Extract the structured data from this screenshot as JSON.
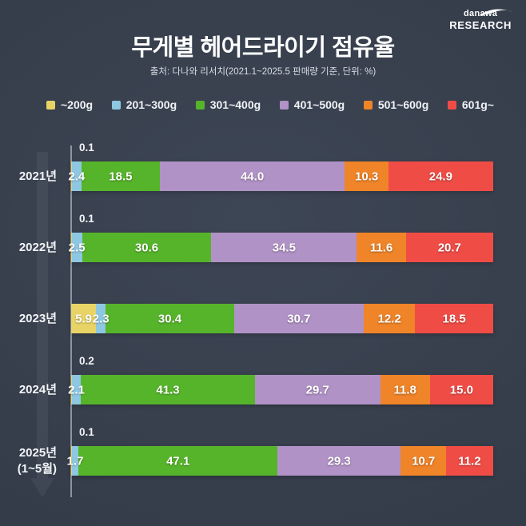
{
  "logo": {
    "brand": "danawa",
    "research": "RESEARCH"
  },
  "header": {
    "title": "무게별 헤어드라이기 점유율",
    "subtitle": "출처: 다나와 리서치(2021.1~2025.5 판매량 기준, 단위: %)"
  },
  "chart_data": {
    "type": "bar",
    "orientation": "horizontal",
    "stacked": true,
    "unit": "%",
    "x_range": [
      0,
      100
    ],
    "legend_position": "top",
    "grid": false,
    "categories": [
      "2021년",
      "2022년",
      "2023년",
      "2024년",
      "2025년\n(1~5월)"
    ],
    "series": [
      {
        "name": "~200g",
        "color": "#e8d466",
        "values": [
          0.1,
          0.1,
          5.9,
          0.2,
          0.1
        ]
      },
      {
        "name": "201~300g",
        "color": "#8ec7e2",
        "values": [
          2.4,
          2.5,
          2.3,
          2.1,
          1.7
        ]
      },
      {
        "name": "301~400g",
        "color": "#56b42a",
        "values": [
          18.5,
          30.6,
          30.4,
          41.3,
          47.1
        ]
      },
      {
        "name": "401~500g",
        "color": "#b192c6",
        "values": [
          44.0,
          34.5,
          30.7,
          29.7,
          29.3
        ]
      },
      {
        "name": "501~600g",
        "color": "#ef8428",
        "values": [
          10.3,
          11.6,
          12.2,
          11.8,
          10.7
        ]
      },
      {
        "name": "601g~",
        "color": "#f04c46",
        "values": [
          24.9,
          20.7,
          18.5,
          15.0,
          11.2
        ]
      }
    ],
    "label_outside_threshold": 1,
    "annotation": "values below 1% are drawn above the bar start"
  }
}
